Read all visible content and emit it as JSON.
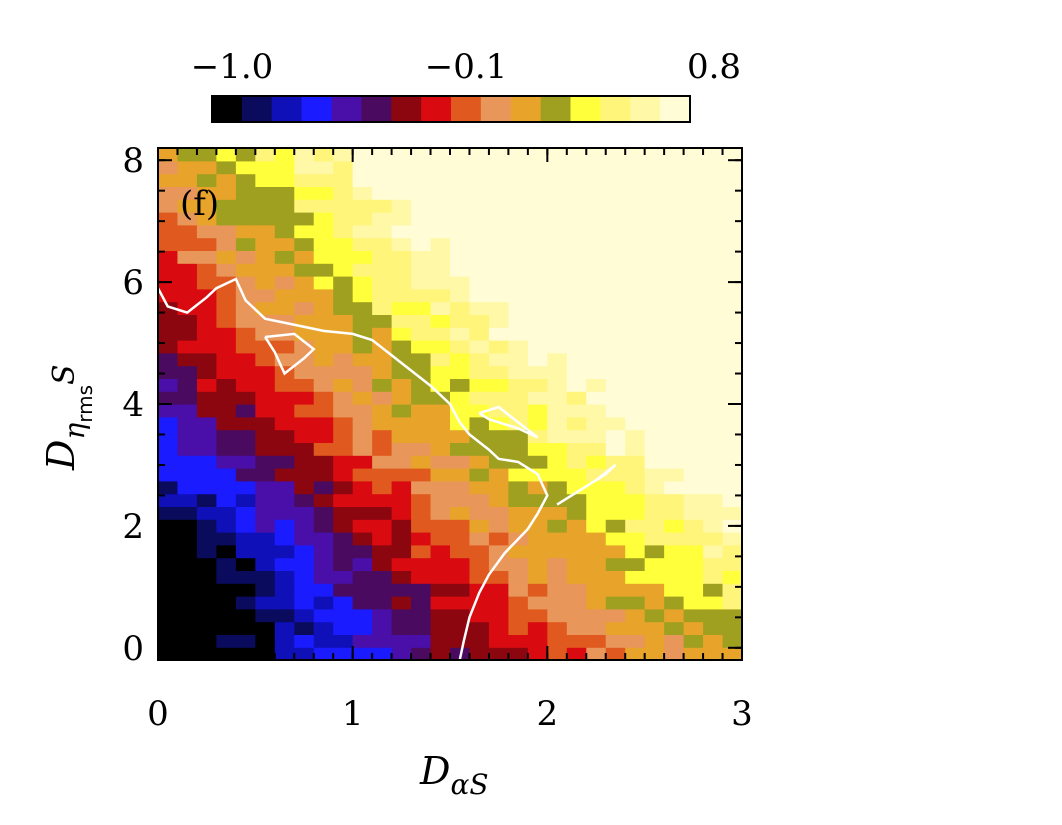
{
  "chart_data": {
    "type": "heatmap",
    "panel_label": "(f)",
    "xlabel": {
      "main": "D",
      "sub": "αS"
    },
    "ylabel": {
      "main": "D",
      "sub_greek": "η",
      "sub_small": "rms",
      "suffix": "S"
    },
    "xlim": [
      0,
      3
    ],
    "ylim": [
      -0.2,
      8.2
    ],
    "x_ticks": [
      0,
      1,
      2,
      3
    ],
    "x_tick_labels": [
      "0",
      "1",
      "2",
      "3"
    ],
    "y_ticks": [
      0,
      2,
      4,
      6,
      8
    ],
    "y_tick_labels": [
      "0",
      "2",
      "4",
      "6",
      "8"
    ],
    "colorbar": {
      "range": [
        -1.0,
        0.8
      ],
      "tick_labels": [
        "−1.0",
        "−0.1",
        "0.8"
      ],
      "colors": [
        "#000000",
        "#0b0b5e",
        "#1010b8",
        "#1b1bff",
        "#4a0fa8",
        "#4a0a60",
        "#8c0610",
        "#d90a10",
        "#e05a20",
        "#e8965a",
        "#e8a42a",
        "#a0a020",
        "#ffff3c",
        "#fff57a",
        "#fff8a6",
        "#fffcd6"
      ]
    },
    "field_model": {
      "description_terms": "value decreases toward lower-left, increases toward upper-right",
      "levels_min": -1.0,
      "levels_max": 0.8
    },
    "contour_level": 0.0,
    "contour_points": [
      [
        0.0,
        5.9
      ],
      [
        0.05,
        5.6
      ],
      [
        0.15,
        5.5
      ],
      [
        0.25,
        5.75
      ],
      [
        0.3,
        5.9
      ],
      [
        0.4,
        6.05
      ],
      [
        0.45,
        5.7
      ],
      [
        0.55,
        5.4
      ],
      [
        0.7,
        5.3
      ],
      [
        0.85,
        5.2
      ],
      [
        1.0,
        5.15
      ],
      [
        1.1,
        5.05
      ],
      [
        1.2,
        4.8
      ],
      [
        1.3,
        4.55
      ],
      [
        1.4,
        4.3
      ],
      [
        1.5,
        4.0
      ],
      [
        1.55,
        3.7
      ],
      [
        1.6,
        3.5
      ],
      [
        1.7,
        3.25
      ],
      [
        1.75,
        3.1
      ],
      [
        1.85,
        3.05
      ],
      [
        1.95,
        2.85
      ],
      [
        2.0,
        2.5
      ],
      [
        1.95,
        2.2
      ],
      [
        1.9,
        1.95
      ],
      [
        1.78,
        1.55
      ],
      [
        1.7,
        1.2
      ],
      [
        1.65,
        0.9
      ],
      [
        1.6,
        0.5
      ],
      [
        1.57,
        0.1
      ],
      [
        1.55,
        -0.2
      ]
    ],
    "contour_islands": [
      [
        [
          0.55,
          5.1
        ],
        [
          0.6,
          4.85
        ],
        [
          0.65,
          4.5
        ],
        [
          0.75,
          4.75
        ],
        [
          0.8,
          4.9
        ],
        [
          0.7,
          5.15
        ],
        [
          0.55,
          5.1
        ]
      ],
      [
        [
          1.65,
          3.85
        ],
        [
          1.75,
          3.95
        ],
        [
          1.85,
          3.7
        ],
        [
          1.95,
          3.45
        ],
        [
          1.85,
          3.6
        ],
        [
          1.7,
          3.75
        ],
        [
          1.65,
          3.85
        ]
      ],
      [
        [
          2.05,
          2.35
        ],
        [
          2.2,
          2.65
        ],
        [
          2.3,
          2.85
        ],
        [
          2.35,
          3.0
        ],
        [
          2.25,
          2.75
        ],
        [
          2.1,
          2.45
        ],
        [
          2.05,
          2.35
        ]
      ]
    ],
    "title": "",
    "grid": false
  }
}
